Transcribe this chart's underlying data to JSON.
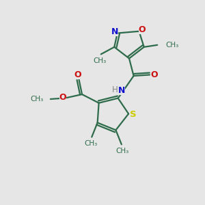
{
  "background_color": "#e6e6e6",
  "bond_color": "#2d6b4a",
  "N_color": "#1010cc",
  "O_color": "#cc1010",
  "S_color": "#cccc00",
  "H_color": "#888888",
  "text_color": "#2d6b4a",
  "figsize": [
    3.0,
    3.0
  ],
  "dpi": 100,
  "xlim": [
    0,
    10
  ],
  "ylim": [
    0,
    10
  ]
}
